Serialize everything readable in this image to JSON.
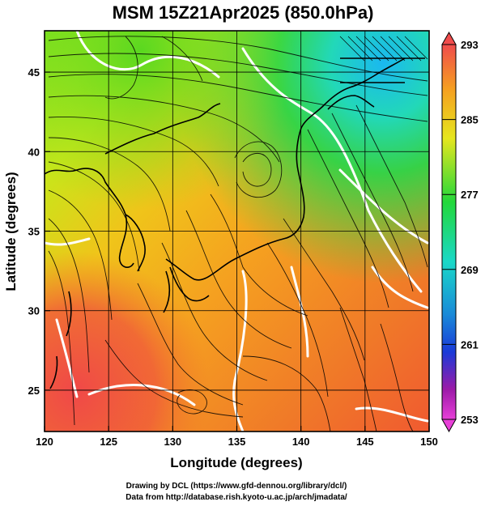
{
  "title": "MSM 15Z21Apr2025 (850.0hPa)",
  "map": {
    "xlabel": "Longitude (degrees)",
    "ylabel": "Latitude  (degrees)",
    "xlim": [
      120,
      150
    ],
    "ylim": [
      22.4,
      47.6
    ],
    "xticks": [
      120,
      125,
      130,
      135,
      140,
      145,
      150
    ],
    "yticks": [
      25,
      30,
      35,
      40,
      45
    ],
    "grid": true,
    "field": "temperature (K) with wind streamlines"
  },
  "colorbar": {
    "ticks": [
      293,
      285,
      277,
      269,
      261,
      253
    ],
    "min": 253,
    "max": 293,
    "colors": {
      "top": "#f04c4c",
      "orange": "#f5a020",
      "yellow": "#e6e61e",
      "green": "#22d83a",
      "cyan": "#1ad8c8",
      "blue": "#1a3ad8",
      "purple": "#9c1aa8",
      "bottom": "#e840d8"
    }
  },
  "credits": {
    "line1": "Drawing by DCL (https://www.gfd-dennou.org/library/dcl/)",
    "line2": "Data from http://database.rish.kyoto-u.ac.jp/arch/jmadata/"
  }
}
